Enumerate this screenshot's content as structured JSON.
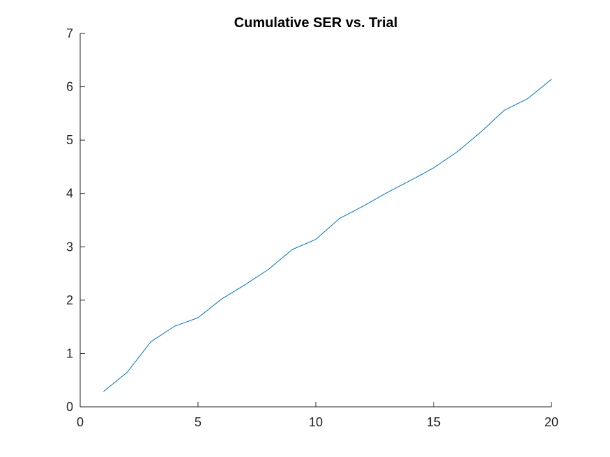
{
  "chart_data": {
    "type": "line",
    "title": "Cumulative SER vs. Trial",
    "xlabel": "",
    "ylabel": "",
    "xlim": [
      0,
      20
    ],
    "ylim": [
      0,
      7
    ],
    "xticks": [
      0,
      5,
      10,
      15,
      20
    ],
    "yticks": [
      0,
      1,
      2,
      3,
      4,
      5,
      6,
      7
    ],
    "grid": false,
    "series": [
      {
        "color": "#0072BD",
        "x": [
          1,
          2,
          3,
          4,
          5,
          6,
          7,
          8,
          9,
          10,
          11,
          12,
          13,
          14,
          15,
          16,
          17,
          18,
          19,
          20
        ],
        "y": [
          0.29,
          0.65,
          1.22,
          1.51,
          1.67,
          2.02,
          2.29,
          2.58,
          2.95,
          3.14,
          3.53,
          3.76,
          4.01,
          4.24,
          4.48,
          4.78,
          5.15,
          5.56,
          5.78,
          6.14
        ]
      }
    ]
  }
}
